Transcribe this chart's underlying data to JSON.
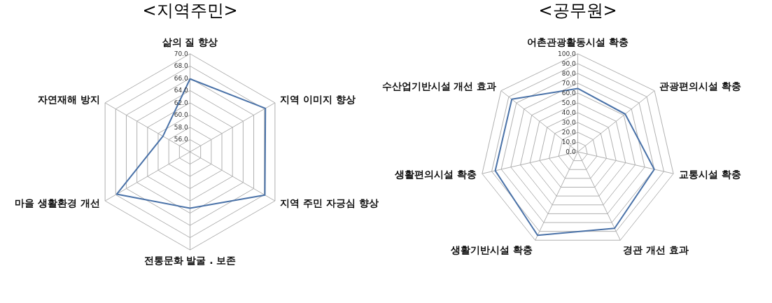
{
  "chart_data": [
    {
      "type": "radar",
      "title": "<지역주민>",
      "categories": [
        "삶의 질 향상",
        "지역 이미지 향상",
        "지역 주민 자긍심 향상",
        "전통문화 발굴 . 보존",
        "마을 생활환경 개선",
        "자연재해 방지"
      ],
      "series": [
        {
          "color": "#4a72a8",
          "values": [
            65.9,
            68.2,
            68.1,
            63.2,
            67.8,
            59.1
          ]
        }
      ],
      "ylim": [
        54,
        70
      ],
      "yticks": [
        {
          "value": 56,
          "label": "56.0"
        },
        {
          "value": 58,
          "label": "58.0"
        },
        {
          "value": 60,
          "label": "60.0"
        },
        {
          "value": 62,
          "label": "62.0"
        },
        {
          "value": 64,
          "label": "64.0"
        },
        {
          "value": 66,
          "label": "66.0"
        },
        {
          "value": 68,
          "label": "68.0"
        },
        {
          "value": 70,
          "label": "70.0"
        }
      ],
      "grid": true,
      "marker": "none"
    },
    {
      "type": "radar",
      "title": "<공무원>",
      "categories": [
        "어촌관광활동시설 확충",
        "관광편의시설 확충",
        "교통시설 확충",
        "경관 개선 효과",
        "생활기반시설 확충",
        "생활편의시설 확충",
        "수산업기반시설 개선 효과"
      ],
      "series": [
        {
          "color": "#4a72a8",
          "values": [
            64.6,
            61.8,
            80.0,
            86.5,
            94.4,
            86.3,
            86.0
          ]
        }
      ],
      "ylim": [
        0,
        100
      ],
      "yticks": [
        {
          "value": 0,
          "label": "0.0"
        },
        {
          "value": 10,
          "label": "10.0"
        },
        {
          "value": 20,
          "label": "20.0"
        },
        {
          "value": 30,
          "label": "30.0"
        },
        {
          "value": 40,
          "label": "40.0"
        },
        {
          "value": 50,
          "label": "50.0"
        },
        {
          "value": 60,
          "label": "60.0"
        },
        {
          "value": 70,
          "label": "70.0"
        },
        {
          "value": 80,
          "label": "80.0"
        },
        {
          "value": 90,
          "label": "90.0"
        },
        {
          "value": 100,
          "label": "100.0"
        }
      ],
      "grid": true,
      "marker": "none"
    }
  ]
}
